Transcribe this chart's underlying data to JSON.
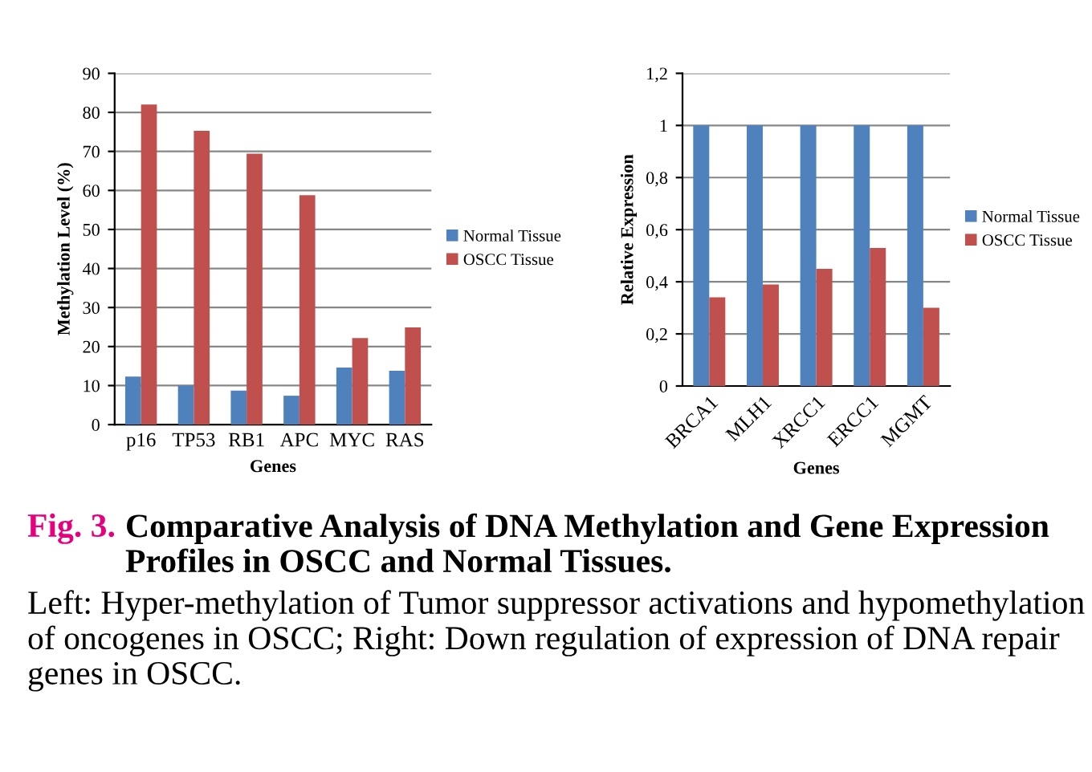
{
  "chart_data": [
    {
      "type": "bar",
      "categories": [
        "p16",
        "TP53",
        "RB1",
        "APC",
        "MYC",
        "RAS"
      ],
      "xlabel": "Genes",
      "ylabel": "Methylation Level (%)",
      "series": [
        {
          "name": "Normal Tissue",
          "color": "#4f81bd",
          "values": [
            12.3,
            10,
            8.7,
            7.4,
            14.6,
            13.8
          ]
        },
        {
          "name": "OSCC Tissue",
          "color": "#c0504d",
          "values": [
            82,
            75.3,
            69.4,
            58.8,
            22.2,
            24.9
          ]
        }
      ],
      "ylim": [
        0,
        90
      ],
      "yticks": [
        0,
        10,
        20,
        30,
        40,
        50,
        60,
        70,
        80,
        90
      ],
      "grid": "y",
      "legend": "right",
      "annotations": [
        "Fig. 3.",
        "Comparative Analysis of DNA Methylation and Gene Expression Profiles in OSCC and Normal Tissues.",
        "Left: Hyper-methylation of Tumor suppressor activations and hypomethylation of oncogenes in OSCC; Right: Down regulation of expression of DNA repair genes in OSCC."
      ]
    },
    {
      "type": "bar",
      "categories": [
        "BRCA1",
        "MLH1",
        "XRCC1",
        "ERCC1",
        "MGMT"
      ],
      "xlabel": "Genes",
      "ylabel": "Relative Expression",
      "series": [
        {
          "name": "Normal Tissue",
          "color": "#4f81bd",
          "values": [
            1,
            1,
            1,
            1,
            1
          ]
        },
        {
          "name": "OSCC Tissue",
          "color": "#c0504d",
          "values": [
            0.34,
            0.39,
            0.45,
            0.53,
            0.3
          ]
        }
      ],
      "ylim": [
        0,
        1.2
      ],
      "yticks": [
        0,
        {
          "value": 0.2,
          "label": "0,2"
        },
        {
          "value": 0.4,
          "label": "0,4"
        },
        {
          "value": 0.6,
          "label": "0,6"
        },
        {
          "value": 0.8,
          "label": "0,8"
        },
        1,
        {
          "value": 1.2,
          "label": "1,2"
        }
      ],
      "grid": "y",
      "legend": "right"
    }
  ]
}
